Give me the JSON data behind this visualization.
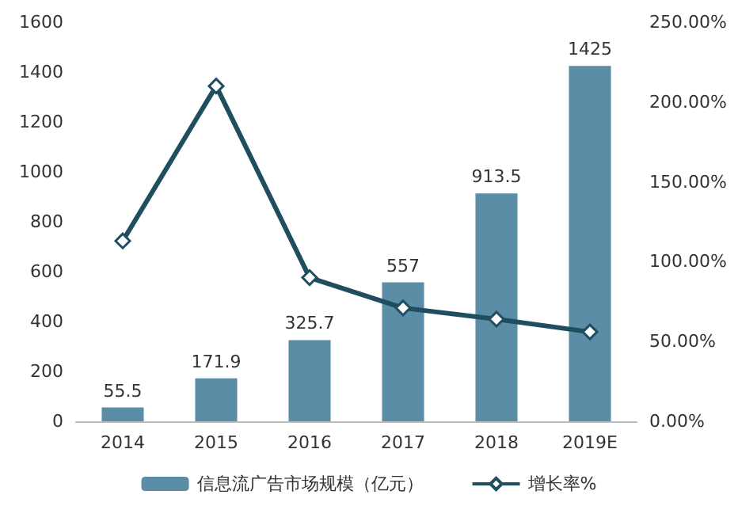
{
  "chart_data": {
    "type": "bar",
    "categories": [
      "2014",
      "2015",
      "2016",
      "2017",
      "2018",
      "2019E"
    ],
    "series": [
      {
        "name": "信息流广告市场规模（亿元）",
        "color": "#5b8ea6",
        "values": [
          55.5,
          171.9,
          325.7,
          557,
          913.5,
          1425
        ],
        "value_labels": [
          "55.5",
          "171.9",
          "325.7",
          "557",
          "913.5",
          "1425"
        ]
      },
      {
        "name": "增长率%",
        "type": "line",
        "axis": "y2",
        "color": "#1f4e5f",
        "marker": "diamond",
        "values": [
          113,
          210,
          90,
          71,
          64,
          56
        ]
      }
    ],
    "ylim": [
      0,
      1600
    ],
    "yticks": [
      0,
      200,
      400,
      600,
      800,
      1000,
      1200,
      1400,
      1600
    ],
    "y2lim": [
      0,
      250
    ],
    "y2ticks": [
      {
        "value": 0,
        "label": "0.00%"
      },
      {
        "value": 50,
        "label": "50.00%"
      },
      {
        "value": 100,
        "label": "100.00%"
      },
      {
        "value": 150,
        "label": "150.00%"
      },
      {
        "value": 200,
        "label": "200.00%"
      },
      {
        "value": 250,
        "label": "250.00%"
      }
    ],
    "legend": "bottom",
    "grid": false
  }
}
